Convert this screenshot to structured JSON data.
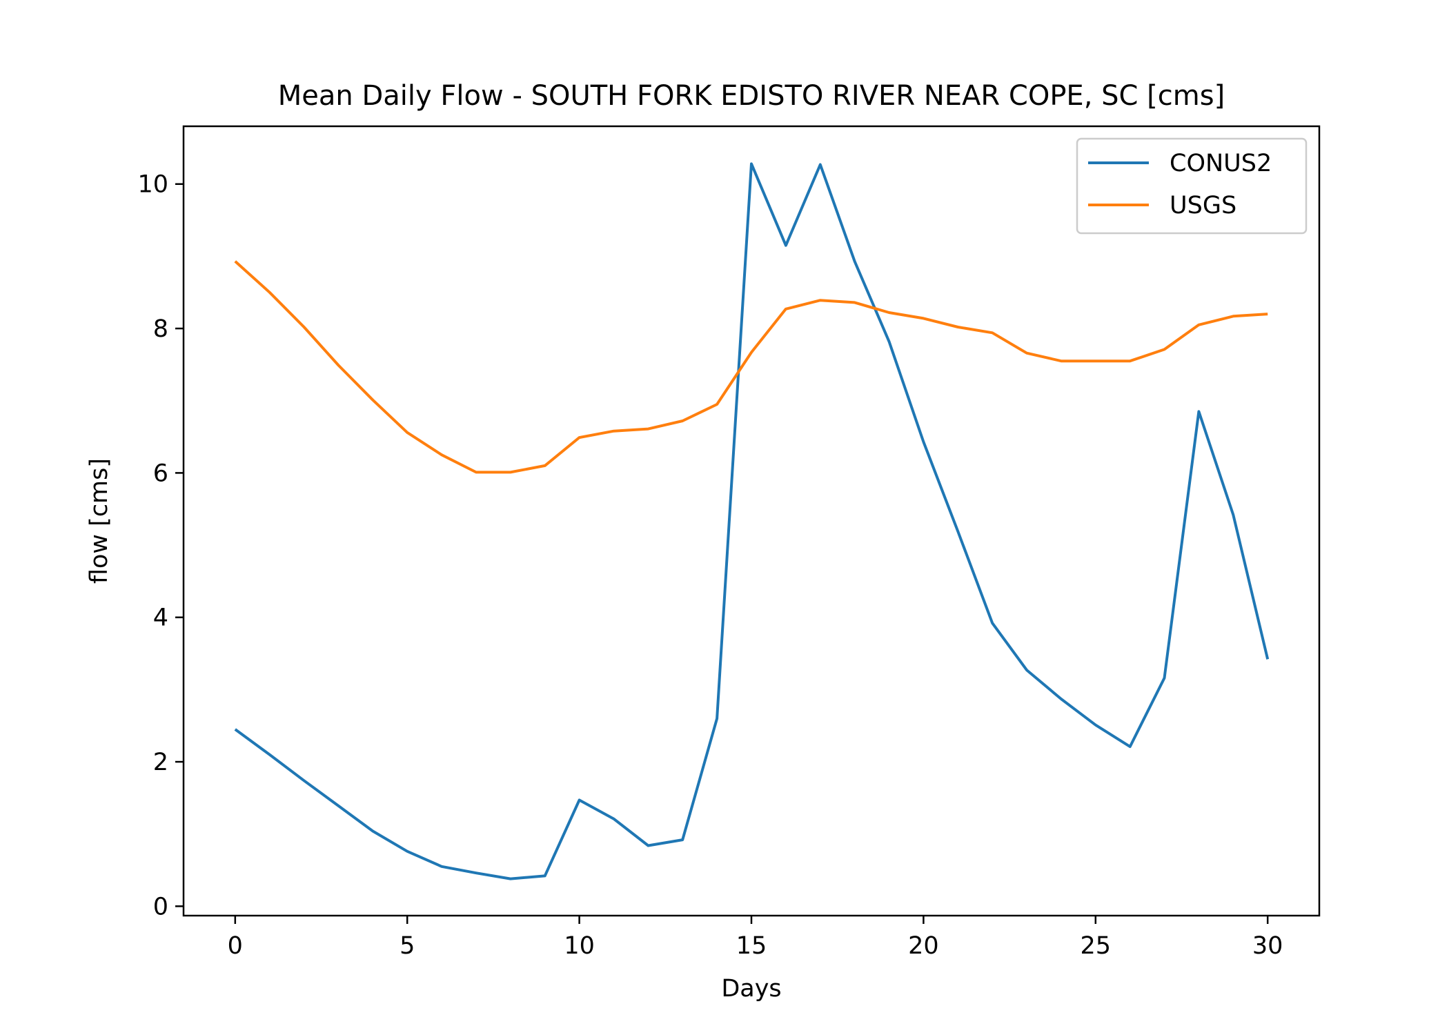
{
  "chart_data": {
    "type": "line",
    "title": "Mean Daily Flow - SOUTH FORK EDISTO RIVER NEAR COPE, SC [cms]",
    "xlabel": "Days",
    "ylabel": "flow [cms]",
    "xlim": [
      -1.5,
      31.5
    ],
    "ylim": [
      -0.13,
      10.8
    ],
    "xticks": [
      0,
      5,
      10,
      15,
      20,
      25,
      30
    ],
    "xtick_labels": [
      "0",
      "5",
      "10",
      "15",
      "20",
      "25",
      "30"
    ],
    "yticks": [
      0,
      2,
      4,
      6,
      8,
      10
    ],
    "ytick_labels": [
      "0",
      "2",
      "4",
      "6",
      "8",
      "10"
    ],
    "grid": false,
    "legend_position": "top-right",
    "x": [
      0,
      1,
      2,
      3,
      4,
      5,
      6,
      7,
      8,
      9,
      10,
      11,
      12,
      13,
      14,
      15,
      16,
      17,
      18,
      19,
      20,
      21,
      22,
      23,
      24,
      25,
      26,
      27,
      28,
      29,
      30
    ],
    "series": [
      {
        "name": "CONUS2",
        "color": "#1f77b4",
        "values": [
          2.45,
          2.1,
          1.74,
          1.39,
          1.04,
          0.76,
          0.55,
          0.46,
          0.38,
          0.42,
          1.47,
          1.21,
          0.84,
          0.92,
          2.6,
          10.28,
          9.15,
          10.27,
          8.93,
          7.82,
          6.43,
          5.19,
          3.92,
          3.27,
          2.87,
          2.51,
          2.21,
          3.16,
          6.85,
          5.42,
          3.42
        ]
      },
      {
        "name": "USGS",
        "color": "#ff7f0e",
        "values": [
          8.93,
          8.5,
          8.02,
          7.49,
          7.01,
          6.56,
          6.25,
          6.01,
          6.01,
          6.1,
          6.49,
          6.58,
          6.61,
          6.72,
          6.95,
          7.67,
          8.27,
          8.39,
          8.36,
          8.22,
          8.14,
          8.02,
          7.94,
          7.66,
          7.55,
          7.55,
          7.55,
          7.71,
          8.05,
          8.17,
          8.2
        ]
      }
    ]
  }
}
